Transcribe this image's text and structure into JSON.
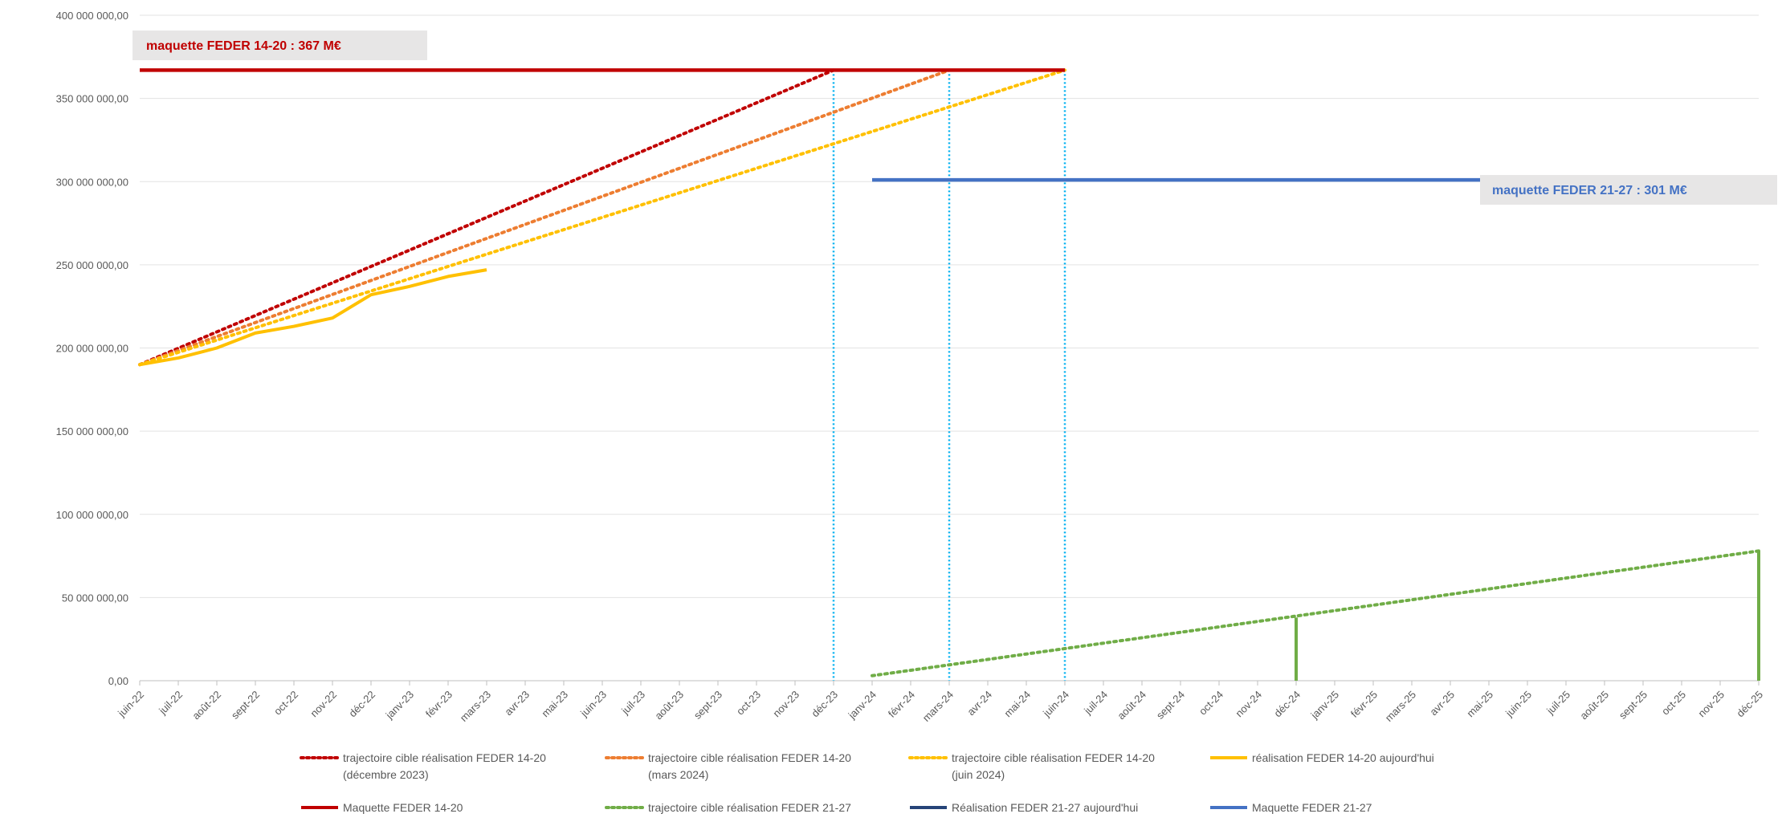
{
  "chart_data": {
    "type": "line",
    "x": [
      "juin-22",
      "juil-22",
      "août-22",
      "sept-22",
      "oct-22",
      "nov-22",
      "déc-22",
      "janv-23",
      "févr-23",
      "mars-23",
      "avr-23",
      "mai-23",
      "juin-23",
      "juil-23",
      "août-23",
      "sept-23",
      "oct-23",
      "nov-23",
      "déc-23",
      "janv-24",
      "févr-24",
      "mars-24",
      "avr-24",
      "mai-24",
      "juin-24",
      "juil-24",
      "août-24",
      "sept-24",
      "oct-24",
      "nov-24",
      "déc-24",
      "janv-25",
      "févr-25",
      "mars-25",
      "avr-25",
      "mai-25",
      "juin-25",
      "juil-25",
      "août-25",
      "sept-25",
      "oct-25",
      "nov-25",
      "déc-25"
    ],
    "y_ticks": [
      "0,00",
      "50 000 000,00",
      "100 000 000,00",
      "150 000 000,00",
      "200 000 000,00",
      "250 000 000,00",
      "300 000 000,00",
      "350 000 000,00",
      "400 000 000,00"
    ],
    "ylim": [
      0,
      400000000
    ],
    "grid": true,
    "legend_position": "bottom",
    "series": [
      {
        "name": "trajectoire cible réalisation FEDER 14-20 (décembre 2023)",
        "name_lines": [
          "trajectoire cible réalisation FEDER 14-20",
          "(décembre 2023)"
        ],
        "style": "dotted",
        "color": "#C00000",
        "points": [
          [
            "juin-22",
            190000000
          ],
          [
            "déc-23",
            367000000
          ]
        ]
      },
      {
        "name": "trajectoire cible réalisation FEDER 14-20 (mars 2024)",
        "name_lines": [
          "trajectoire cible réalisation FEDER 14-20",
          "(mars 2024)"
        ],
        "style": "dotted",
        "color": "#ED7D31",
        "points": [
          [
            "juin-22",
            190000000
          ],
          [
            "mars-24",
            367000000
          ]
        ]
      },
      {
        "name": "trajectoire cible réalisation FEDER 14-20 (juin 2024)",
        "name_lines": [
          "trajectoire cible réalisation FEDER 14-20",
          "(juin 2024)"
        ],
        "style": "dotted",
        "color": "#FFC000",
        "points": [
          [
            "juin-22",
            190000000
          ],
          [
            "juin-24",
            367000000
          ]
        ]
      },
      {
        "name": "réalisation  FEDER 14-20 aujourd'hui",
        "name_lines": [
          "réalisation  FEDER 14-20 aujourd'hui"
        ],
        "style": "solid",
        "color": "#FFC000",
        "points": [
          [
            "juin-22",
            190000000
          ],
          [
            "juil-22",
            194000000
          ],
          [
            "août-22",
            200000000
          ],
          [
            "sept-22",
            209000000
          ],
          [
            "oct-22",
            213000000
          ],
          [
            "nov-22",
            218000000
          ],
          [
            "déc-22",
            232000000
          ],
          [
            "janv-23",
            237000000
          ],
          [
            "févr-23",
            243000000
          ],
          [
            "mars-23",
            247000000
          ]
        ]
      },
      {
        "name": "Maquette FEDER 14-20",
        "name_lines": [
          "Maquette FEDER 14-20"
        ],
        "style": "solid",
        "color": "#C00000",
        "points": [
          [
            "juin-22",
            367000000
          ],
          [
            "juin-24",
            367000000
          ]
        ]
      },
      {
        "name": "trajectoire cible réalisation FEDER 21-27",
        "name_lines": [
          "trajectoire cible réalisation FEDER 21-27"
        ],
        "style": "dotted",
        "color": "#70AD47",
        "points": [
          [
            "janv-24",
            3000000
          ],
          [
            "déc-25",
            78000000
          ]
        ]
      },
      {
        "name": "Réalisation FEDER 21-27 aujourd'hui",
        "name_lines": [
          "Réalisation FEDER 21-27 aujourd'hui"
        ],
        "style": "solid",
        "color": "#264478",
        "points": []
      },
      {
        "name": "Maquette FEDER 21-27",
        "name_lines": [
          "Maquette FEDER 21-27"
        ],
        "style": "solid",
        "color": "#4472C4",
        "points": [
          [
            "janv-24",
            301000000
          ],
          [
            "déc-25",
            301000000
          ]
        ]
      }
    ],
    "green_bars": {
      "color": "#70AD47",
      "points": [
        [
          "déc-24",
          38000000
        ],
        [
          "déc-25",
          78000000
        ]
      ]
    },
    "vertical_markers": {
      "color": "#00B0F0",
      "x": [
        "déc-23",
        "mars-24",
        "juin-24"
      ]
    },
    "annotations": [
      {
        "text": "maquette FEDER 14-20 : 367 M€",
        "color": "#C00000",
        "background": "#E7E6E6"
      },
      {
        "text": "maquette FEDER 21-27 : 301 M€",
        "color": "#4472C4",
        "background": "#E7E6E6"
      }
    ]
  }
}
